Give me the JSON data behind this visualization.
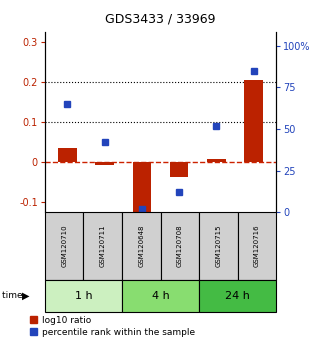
{
  "title": "GDS3433 / 33969",
  "samples": [
    "GSM120710",
    "GSM120711",
    "GSM120648",
    "GSM120708",
    "GSM120715",
    "GSM120716"
  ],
  "log10_ratio": [
    0.035,
    -0.008,
    -0.13,
    -0.038,
    0.008,
    0.205
  ],
  "percentile_rank": [
    65,
    42,
    2,
    12,
    52,
    85
  ],
  "time_groups": [
    {
      "label": "1 h",
      "samples": [
        0,
        1
      ],
      "color": "#ccf0c0"
    },
    {
      "label": "4 h",
      "samples": [
        2,
        3
      ],
      "color": "#88dd70"
    },
    {
      "label": "24 h",
      "samples": [
        4,
        5
      ],
      "color": "#44bb44"
    }
  ],
  "ylim_left": [
    -0.125,
    0.325
  ],
  "ylim_right": [
    0,
    108.33
  ],
  "yticks_left": [
    -0.1,
    0.0,
    0.1,
    0.2,
    0.3
  ],
  "yticks_right": [
    0,
    25,
    50,
    75,
    100
  ],
  "ytick_labels_left": [
    "-0.1",
    "0",
    "0.1",
    "0.2",
    "0.3"
  ],
  "ytick_labels_right": [
    "0",
    "25",
    "50",
    "75",
    "100%"
  ],
  "hlines": [
    0.1,
    0.2
  ],
  "bar_color_red": "#bb2200",
  "bar_color_blue": "#2244bb",
  "zero_line_color": "#cc2200",
  "bar_width": 0.5,
  "sample_box_color": "#d0d0d0",
  "legend_red_label": "log10 ratio",
  "legend_blue_label": "percentile rank within the sample",
  "title_fontsize": 9,
  "tick_fontsize": 7,
  "sample_fontsize": 5,
  "time_fontsize": 8
}
